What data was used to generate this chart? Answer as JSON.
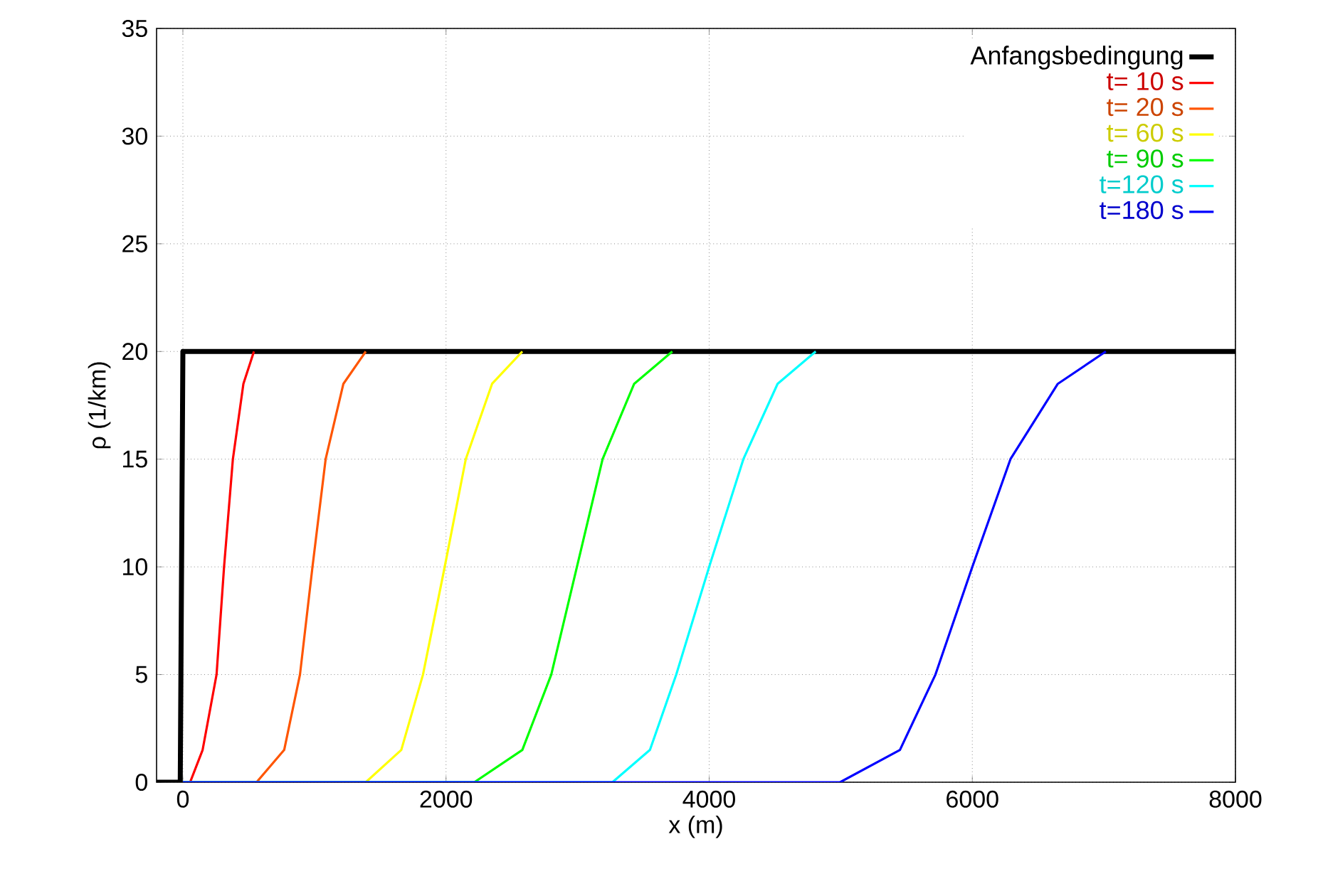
{
  "chart_data": {
    "type": "line",
    "xlabel": "x (m)",
    "ylabel": "ρ (1/km)",
    "xlim": [
      -200,
      8000
    ],
    "ylim": [
      0,
      35
    ],
    "xticks": [
      0,
      2000,
      4000,
      6000,
      8000
    ],
    "yticks": [
      0,
      5,
      10,
      15,
      20,
      25,
      30,
      35
    ],
    "grid": true,
    "legend": "top right",
    "line_style": "solid",
    "marker": "none",
    "series": [
      {
        "name": "Anfangsbedingung",
        "color": "#000000",
        "x": [
          -200,
          -20,
          0,
          8000
        ],
        "values": [
          0,
          0,
          20,
          20
        ]
      },
      {
        "name": "t= 10 s",
        "color": "#ff0000",
        "x": [
          0,
          55,
          150,
          256,
          313,
          380,
          460,
          540
        ],
        "values": [
          0,
          0,
          1.5,
          5,
          10,
          15,
          18.5,
          20
        ]
      },
      {
        "name": "t= 20 s",
        "color": "#ff5500",
        "x": [
          0,
          560,
          770,
          890,
          985,
          1085,
          1220,
          1390
        ],
        "values": [
          0,
          0,
          1.5,
          5,
          10,
          15,
          18.5,
          20
        ]
      },
      {
        "name": "t= 60 s",
        "color": "#ffff00",
        "x": [
          0,
          1390,
          1660,
          1825,
          1990,
          2150,
          2350,
          2580
        ],
        "values": [
          0,
          0,
          1.5,
          5,
          10,
          15,
          18.5,
          20
        ]
      },
      {
        "name": "t= 90 s",
        "color": "#00ff00",
        "x": [
          0,
          2215,
          2580,
          2800,
          2995,
          3190,
          3430,
          3720
        ],
        "values": [
          0,
          0,
          1.5,
          5,
          10,
          15,
          18.5,
          20
        ]
      },
      {
        "name": "t=120 s",
        "color": "#00ffff",
        "x": [
          0,
          3265,
          3550,
          3750,
          4000,
          4260,
          4520,
          4810
        ],
        "values": [
          0,
          0,
          1.5,
          5,
          10,
          15,
          18.5,
          20
        ]
      },
      {
        "name": "t=180 s",
        "color": "#0000ff",
        "x": [
          0,
          4995,
          5450,
          5720,
          6000,
          6290,
          6650,
          7015
        ],
        "values": [
          0,
          0,
          1.5,
          5,
          10,
          15,
          18.5,
          20
        ]
      }
    ]
  }
}
